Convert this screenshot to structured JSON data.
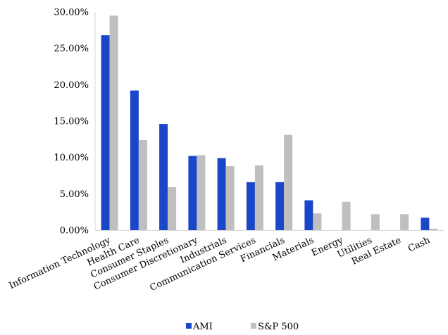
{
  "chart_data": {
    "type": "bar",
    "categories": [
      "Information Technology",
      "Health Care",
      "Consumer Staples",
      "Consumer Discretionary",
      "Industrials",
      "Communication Services",
      "Financials",
      "Materials",
      "Energy",
      "Utilities",
      "Real Estate",
      "Cash"
    ],
    "series": [
      {
        "name": "AMI",
        "color": "#1a47c8",
        "values": [
          26.8,
          19.2,
          14.6,
          10.2,
          9.9,
          6.6,
          6.6,
          4.1,
          0,
          0,
          0,
          1.7
        ]
      },
      {
        "name": "S&P 500",
        "color": "#bfbfbf",
        "values": [
          29.5,
          12.4,
          5.9,
          10.3,
          8.8,
          8.9,
          13.1,
          2.3,
          3.9,
          2.2,
          2.2,
          0.2
        ]
      }
    ],
    "yticks": [
      "0.00%",
      "5.00%",
      "10.00%",
      "15.00%",
      "20.00%",
      "25.00%",
      "30.00%"
    ],
    "ylim": [
      0,
      30
    ],
    "grid": false,
    "legend_position": "bottom",
    "title": "",
    "xlabel": "",
    "ylabel": ""
  }
}
